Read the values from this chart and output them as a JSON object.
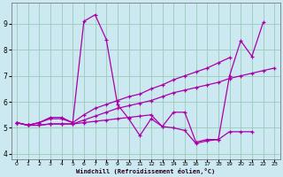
{
  "xlabel": "Windchill (Refroidissement éolien,°C)",
  "bg_color": "#cce8f0",
  "line_color": "#aa00aa",
  "grid_color": "#99ccbb",
  "xlim": [
    -0.5,
    23.5
  ],
  "ylim": [
    3.8,
    9.8
  ],
  "yticks": [
    4,
    5,
    6,
    7,
    8,
    9
  ],
  "xticks": [
    0,
    1,
    2,
    3,
    4,
    5,
    6,
    7,
    8,
    9,
    10,
    11,
    12,
    13,
    14,
    15,
    16,
    17,
    18,
    19,
    20,
    21,
    22,
    23
  ],
  "series": [
    {
      "x": [
        0,
        1,
        2,
        3,
        4,
        5,
        6,
        7,
        8,
        9,
        10,
        11,
        12,
        13,
        14,
        15,
        16,
        17,
        18,
        19,
        20,
        21,
        22
      ],
      "y": [
        5.2,
        5.1,
        5.2,
        5.4,
        5.4,
        5.2,
        9.1,
        9.35,
        8.4,
        5.9,
        5.35,
        4.7,
        5.35,
        5.05,
        5.6,
        5.6,
        4.45,
        4.55,
        4.55,
        7.0,
        8.35,
        7.75,
        9.05
      ]
    },
    {
      "x": [
        0,
        1,
        2,
        3,
        4,
        5,
        6,
        7,
        8,
        9,
        10,
        11,
        12,
        13,
        14,
        15,
        16,
        17,
        18,
        19
      ],
      "y": [
        5.2,
        5.1,
        5.2,
        5.35,
        5.35,
        5.2,
        5.5,
        5.75,
        5.9,
        6.05,
        6.2,
        6.3,
        6.5,
        6.65,
        6.85,
        7.0,
        7.15,
        7.3,
        7.5,
        7.7
      ]
    },
    {
      "x": [
        0,
        1,
        2,
        3,
        4,
        5,
        6,
        7,
        8,
        9,
        10,
        11,
        12,
        13,
        14,
        15,
        16,
        17,
        18,
        19,
        20,
        21,
        22,
        23
      ],
      "y": [
        5.2,
        5.1,
        5.1,
        5.15,
        5.15,
        5.15,
        5.3,
        5.45,
        5.6,
        5.75,
        5.85,
        5.95,
        6.05,
        6.2,
        6.35,
        6.45,
        6.55,
        6.65,
        6.75,
        6.9,
        7.0,
        7.1,
        7.2,
        7.3
      ]
    },
    {
      "x": [
        0,
        1,
        2,
        3,
        4,
        5,
        6,
        7,
        8,
        9,
        10,
        11,
        12,
        13,
        14,
        15,
        16,
        17,
        18,
        19,
        20,
        21,
        22
      ],
      "y": [
        5.2,
        5.1,
        5.1,
        5.15,
        5.15,
        5.15,
        5.2,
        5.25,
        5.3,
        5.35,
        5.4,
        5.45,
        5.5,
        5.05,
        5.0,
        4.9,
        4.4,
        4.5,
        4.55,
        4.85,
        4.85,
        4.85,
        null
      ]
    }
  ]
}
